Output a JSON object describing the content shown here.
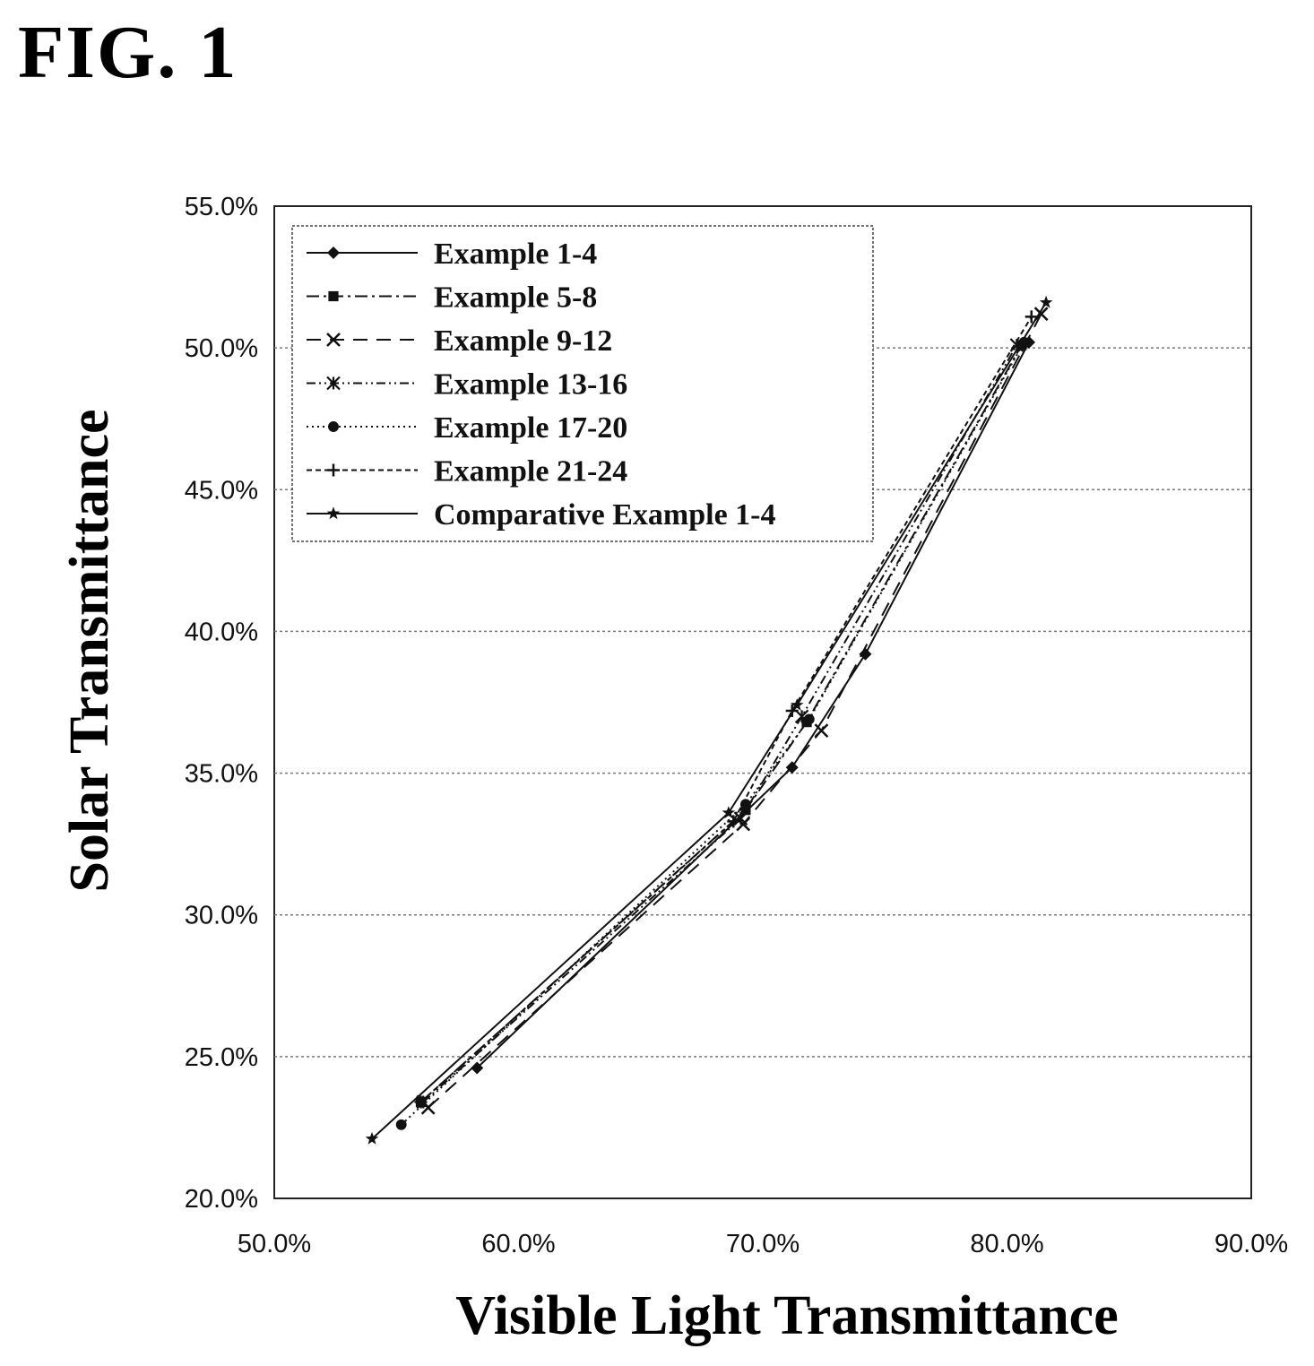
{
  "figure_label": "FIG. 1",
  "chart_data": {
    "type": "line",
    "title": "",
    "xlabel": "Visible Light Transmittance",
    "ylabel": "Solar Transmittance",
    "xlim": [
      50.0,
      90.0
    ],
    "ylim": [
      20.0,
      55.0
    ],
    "x_ticks": [
      "50.0%",
      "60.0%",
      "70.0%",
      "80.0%",
      "90.0%"
    ],
    "y_ticks": [
      "20.0%",
      "25.0%",
      "30.0%",
      "35.0%",
      "40.0%",
      "45.0%",
      "50.0%",
      "55.0%"
    ],
    "grid": "horizontal",
    "legend_position": "top-left",
    "series": [
      {
        "name": "Example 1-4",
        "marker": "diamond",
        "dash": "",
        "x": [
          58.3,
          71.2,
          74.2,
          80.9
        ],
        "y": [
          24.6,
          35.2,
          39.2,
          50.2
        ]
      },
      {
        "name": "Example 5-8",
        "marker": "square",
        "dash": "14 5 3 5",
        "x": [
          56.0,
          69.3,
          71.8,
          80.6
        ],
        "y": [
          23.4,
          33.7,
          36.8,
          50.1
        ]
      },
      {
        "name": "Example 9-12",
        "marker": "x",
        "dash": "16 10",
        "x": [
          56.3,
          69.2,
          72.4,
          81.4
        ],
        "y": [
          23.2,
          33.2,
          36.5,
          51.2
        ]
      },
      {
        "name": "Example 13-16",
        "marker": "asterisk",
        "dash": "10 4 2 4 2 4",
        "x": [
          56.1,
          69.1,
          71.6,
          80.4
        ],
        "y": [
          23.4,
          33.4,
          37.0,
          50.1
        ]
      },
      {
        "name": "Example 17-20",
        "marker": "circle",
        "dash": "2 4",
        "x": [
          55.2,
          69.3,
          71.9,
          80.7
        ],
        "y": [
          22.6,
          33.9,
          36.9,
          50.2
        ]
      },
      {
        "name": "Example 21-24",
        "marker": "plus",
        "dash": "6 4",
        "x": [
          56.0,
          68.8,
          71.2,
          81.0
        ],
        "y": [
          23.4,
          33.3,
          37.2,
          51.1
        ]
      },
      {
        "name": "Comparative Example 1-4",
        "marker": "star",
        "dash": "",
        "x": [
          54.0,
          68.6,
          71.4,
          81.6
        ],
        "y": [
          22.1,
          33.6,
          37.4,
          51.6
        ]
      }
    ]
  }
}
